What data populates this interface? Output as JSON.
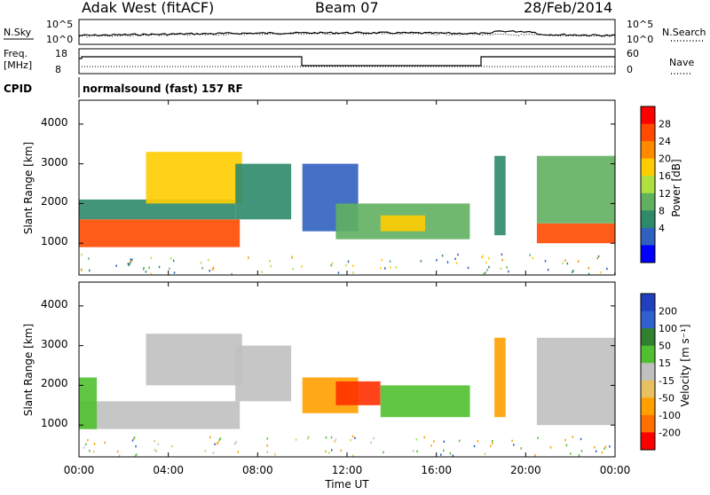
{
  "header": {
    "radar": "Adak West (fitACF)",
    "beam": "Beam 07",
    "date": "28/Feb/2014"
  },
  "sky_panel": {
    "left_label": "N.Sky",
    "left_ticks": [
      "10^5",
      "10^0"
    ],
    "right_ticks": [
      "10^5",
      "10^0"
    ],
    "right_label": "N.Search"
  },
  "freq_panel": {
    "left_label_1": "Freq.",
    "left_label_2": "[MHz]",
    "left_ticks": [
      "18",
      "8"
    ],
    "right_ticks": [
      "60",
      "0"
    ],
    "right_label": "Nave"
  },
  "cpid": {
    "label": "CPID",
    "value": "normalsound (fast) 157 RF"
  },
  "colors": {
    "frame": "#000000",
    "power_scale": [
      "#0000ff",
      "#3060c0",
      "#2f8a6a",
      "#60b060",
      "#aee040",
      "#ffcc00",
      "#ff8a00",
      "#ff4a00",
      "#ff0000"
    ],
    "velocity_scale": [
      "#2040c0",
      "#3060d0",
      "#308030",
      "#50c030",
      "#a0e060",
      "#c0c0c0",
      "#e8c060",
      "#ffa000",
      "#ff7000",
      "#ff3000",
      "#ff0000"
    ]
  },
  "chart_data": [
    {
      "type": "heatmap",
      "name": "power",
      "ylabel": "Slant Range [km]",
      "y_ticks": [
        "1000",
        "2000",
        "3000",
        "4000"
      ],
      "ylim": [
        200,
        4600
      ],
      "xlim": [
        "00:00",
        "24:00"
      ],
      "colorbar_label": "Power [dB]",
      "colorbar_ticks": [
        "4",
        "8",
        "12",
        "16",
        "20",
        "24",
        "28"
      ],
      "regions": [
        {
          "t0": 0.0,
          "t1": 7.2,
          "r0": 900,
          "r1": 1600,
          "level": 28
        },
        {
          "t0": 0.0,
          "t1": 7.0,
          "r0": 1600,
          "r1": 2100,
          "level": 10
        },
        {
          "t0": 3.0,
          "t1": 7.3,
          "r0": 2000,
          "r1": 3300,
          "level": 20
        },
        {
          "t0": 7.0,
          "t1": 9.5,
          "r0": 1600,
          "r1": 3000,
          "level": 8
        },
        {
          "t0": 10.0,
          "t1": 12.5,
          "r0": 1300,
          "r1": 3000,
          "level": 6
        },
        {
          "t0": 11.5,
          "t1": 17.5,
          "r0": 1100,
          "r1": 2000,
          "level": 12
        },
        {
          "t0": 13.5,
          "t1": 15.5,
          "r0": 1300,
          "r1": 1700,
          "level": 20
        },
        {
          "t0": 18.6,
          "t1": 19.1,
          "r0": 1200,
          "r1": 3200,
          "level": 10
        },
        {
          "t0": 20.5,
          "t1": 24.0,
          "r0": 1000,
          "r1": 1500,
          "level": 28
        },
        {
          "t0": 20.5,
          "t1": 24.0,
          "r0": 1500,
          "r1": 3200,
          "level": 14
        }
      ]
    },
    {
      "type": "heatmap",
      "name": "velocity",
      "ylabel": "Slant Range [km]",
      "y_ticks": [
        "1000",
        "2000",
        "3000",
        "4000"
      ],
      "ylim": [
        200,
        4600
      ],
      "xlim": [
        "00:00",
        "24:00"
      ],
      "x_ticks": [
        "00:00",
        "04:00",
        "08:00",
        "12:00",
        "16:00",
        "20:00",
        "00:00"
      ],
      "xlabel": "Time UT",
      "colorbar_label": "Velocity [m s⁻¹]",
      "colorbar_ticks": [
        "200",
        "100",
        "50",
        "15",
        "-15",
        "-50",
        "-100",
        "-200"
      ],
      "regions": [
        {
          "t0": 0.0,
          "t1": 7.2,
          "r0": 900,
          "r1": 1600,
          "level": 0
        },
        {
          "t0": 0.0,
          "t1": 0.8,
          "r0": 900,
          "r1": 2200,
          "level": 30
        },
        {
          "t0": 3.0,
          "t1": 7.3,
          "r0": 2000,
          "r1": 3300,
          "level": 0
        },
        {
          "t0": 7.0,
          "t1": 9.5,
          "r0": 1600,
          "r1": 3000,
          "level": 0
        },
        {
          "t0": 10.0,
          "t1": 12.5,
          "r0": 1300,
          "r1": 2200,
          "level": -60
        },
        {
          "t0": 11.5,
          "t1": 13.5,
          "r0": 1500,
          "r1": 2100,
          "level": -120
        },
        {
          "t0": 13.5,
          "t1": 17.5,
          "r0": 1200,
          "r1": 2000,
          "level": 30
        },
        {
          "t0": 18.6,
          "t1": 19.1,
          "r0": 1200,
          "r1": 3200,
          "level": -60
        },
        {
          "t0": 20.5,
          "t1": 24.0,
          "r0": 1000,
          "r1": 3200,
          "level": 0
        }
      ]
    }
  ]
}
